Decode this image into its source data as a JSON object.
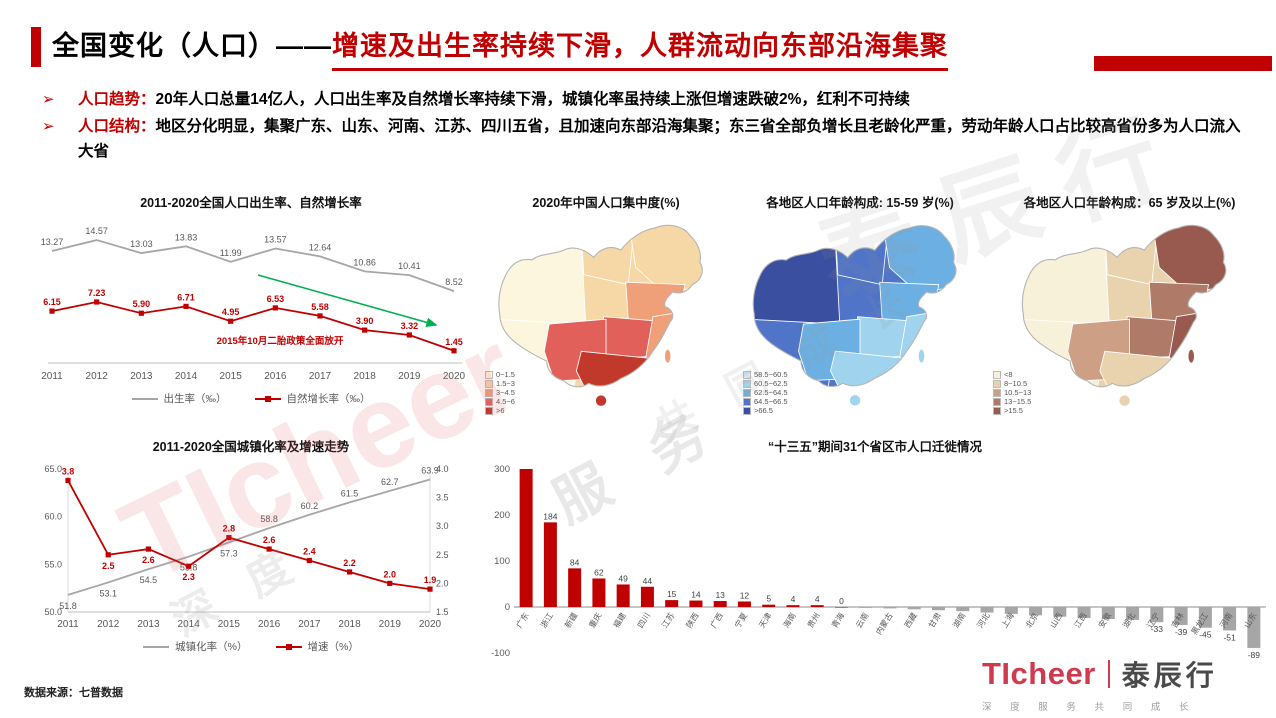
{
  "header": {
    "title_black": "全国变化（人口）——",
    "title_red": "增速及出生率持续下滑，人群流动向东部沿海集聚"
  },
  "bullets": [
    {
      "marker": "➢",
      "label": "人口趋势：",
      "text": "20年人口总量14亿人，人口出生率及自然增长率持续下滑，城镇化率虽持续上涨但增速跌破2%，红利不可持续"
    },
    {
      "marker": "➢",
      "label": "人口结构：",
      "text": "地区分化明显，集聚广东、山东、河南、江苏、四川五省，且加速向东部沿海集聚；东三省全部负增长且老龄化严重，劳动年龄人口占比较高省份多为人口流入大省"
    }
  ],
  "chart_data": [
    {
      "id": "birth-rate-line",
      "type": "line",
      "title": "2011-2020全国人口出生率、自然增长率",
      "years": [
        2011,
        2012,
        2013,
        2014,
        2015,
        2016,
        2017,
        2018,
        2019,
        2020
      ],
      "ylim": [
        0,
        16
      ],
      "series": [
        {
          "name": "出生率（‰）",
          "color": "#a6a6a6",
          "marker": "none",
          "values": [
            13.27,
            14.57,
            13.03,
            13.83,
            11.99,
            13.57,
            12.64,
            10.86,
            10.41,
            8.52
          ]
        },
        {
          "name": "自然增长率（‰）",
          "color": "#c00000",
          "marker": "square",
          "values": [
            6.15,
            7.23,
            5.9,
            6.71,
            4.95,
            6.53,
            5.58,
            3.9,
            3.32,
            1.45
          ]
        }
      ],
      "annotation": "2015年10月二胎政策全面放开",
      "annotation_color": "#c00000",
      "arrow_color": "#00b050"
    },
    {
      "id": "urbanization-combo",
      "type": "line",
      "title": "2011-2020全国城镇化率及增速走势",
      "years": [
        2011,
        2012,
        2013,
        2014,
        2015,
        2016,
        2017,
        2018,
        2019,
        2020
      ],
      "left_axis": {
        "min": 50,
        "max": 65,
        "ticks": [
          "50.0",
          "55.0",
          "60.0",
          "65.0"
        ]
      },
      "right_axis": {
        "min": 1.5,
        "max": 4.0,
        "ticks": [
          "1.5",
          "2.0",
          "2.5",
          "3.0",
          "3.5",
          "4.0"
        ]
      },
      "series": [
        {
          "name": "城镇化率（%）",
          "color": "#a6a6a6",
          "axis": "left",
          "marker": "none",
          "values": [
            51.8,
            53.1,
            54.5,
            55.8,
            57.3,
            58.8,
            60.2,
            61.5,
            62.7,
            63.9
          ]
        },
        {
          "name": "增速（%）",
          "color": "#c00000",
          "axis": "right",
          "marker": "square",
          "values": [
            3.8,
            2.5,
            2.6,
            2.3,
            2.8,
            2.6,
            2.4,
            2.2,
            2.0,
            1.9
          ]
        }
      ]
    },
    {
      "id": "migration-bar",
      "type": "bar",
      "title": "“十三五”期间31个省区市人口迁徙情况",
      "y_ticks": [
        300,
        200,
        100,
        0,
        -100
      ],
      "ylim": [
        -100,
        300
      ],
      "pos_color": "#c00000",
      "neg_color": "#a6a6a6",
      "bars": [
        {
          "province": "广东",
          "value": 300
        },
        {
          "province": "浙江",
          "value": 184
        },
        {
          "province": "新疆",
          "value": 84
        },
        {
          "province": "重庆",
          "value": 62
        },
        {
          "province": "福建",
          "value": 49
        },
        {
          "province": "四川",
          "value": 44
        },
        {
          "province": "江苏",
          "value": 15
        },
        {
          "province": "陕西",
          "value": 14
        },
        {
          "province": "广西",
          "value": 13
        },
        {
          "province": "宁夏",
          "value": 12
        },
        {
          "province": "天津",
          "value": 5
        },
        {
          "province": "海南",
          "value": 4
        },
        {
          "province": "贵州",
          "value": 4
        },
        {
          "province": "青海",
          "value": 0
        },
        {
          "province": "云南",
          "value": -2
        },
        {
          "province": "内蒙古",
          "value": -3
        },
        {
          "province": "西藏",
          "value": -5
        },
        {
          "province": "甘肃",
          "value": -7
        },
        {
          "province": "湖南",
          "value": -9
        },
        {
          "province": "河北",
          "value": -12
        },
        {
          "province": "上海",
          "value": -15
        },
        {
          "province": "北京",
          "value": -18
        },
        {
          "province": "山西",
          "value": -21
        },
        {
          "province": "江西",
          "value": -24
        },
        {
          "province": "安徽",
          "value": -26
        },
        {
          "province": "湖北",
          "value": -28
        },
        {
          "province": "辽宁",
          "value": -33
        },
        {
          "province": "吉林",
          "value": -39
        },
        {
          "province": "黑龙江",
          "value": -45
        },
        {
          "province": "河南",
          "value": -51
        },
        {
          "province": "山东",
          "value": -89
        }
      ]
    },
    {
      "id": "map-concentration",
      "type": "choropleth",
      "title": "2020年中国人口集中度(%)",
      "legend": [
        {
          "label": "0~1.5",
          "color": "#fdf6df"
        },
        {
          "label": "1.5~3",
          "color": "#f6d8a7"
        },
        {
          "label": "3~4.5",
          "color": "#f0a078"
        },
        {
          "label": "4.5~6",
          "color": "#e2605a"
        },
        {
          "label": ">6",
          "color": "#c0392b"
        }
      ],
      "regions": {
        "west": "#fdf6df",
        "tibet": "#fdf6df",
        "north": "#f6d8a7",
        "northeast": "#f6d8a7",
        "northchina": "#f0a078",
        "central": "#e2605a",
        "east": "#f0a078",
        "southwest": "#e2605a",
        "south": "#c0392b"
      }
    },
    {
      "id": "map-age-15-59",
      "type": "choropleth",
      "title": "各地区人口年龄构成: 15-59 岁(%)",
      "legend": [
        {
          "label": "58.5~60.5",
          "color": "#cfe7f5"
        },
        {
          "label": "60.5~62.5",
          "color": "#9fd3ee"
        },
        {
          "label": "62.5~64.5",
          "color": "#6cb0e3"
        },
        {
          "label": "64.5~66.5",
          "color": "#4f74c8"
        },
        {
          "label": ">66.5",
          "color": "#3b4fa0"
        }
      ],
      "regions": {
        "west": "#3b4fa0",
        "tibet": "#4f74c8",
        "north": "#4f74c8",
        "northeast": "#6cb0e3",
        "northchina": "#6cb0e3",
        "central": "#9fd3ee",
        "east": "#9fd3ee",
        "southwest": "#6cb0e3",
        "south": "#9fd3ee"
      }
    },
    {
      "id": "map-age-65plus",
      "type": "choropleth",
      "title": "各地区人口年龄构成：65 岁及以上(%)",
      "legend": [
        {
          "label": "<8",
          "color": "#f8f1da"
        },
        {
          "label": "8~10.5",
          "color": "#e9d3ae"
        },
        {
          "label": "10.5~13",
          "color": "#cda085"
        },
        {
          "label": "13~15.5",
          "color": "#b07a69"
        },
        {
          "label": ">15.5",
          "color": "#985a4e"
        }
      ],
      "regions": {
        "west": "#f8f1da",
        "tibet": "#f8f1da",
        "north": "#e9d3ae",
        "northeast": "#985a4e",
        "northchina": "#b07a69",
        "central": "#b07a69",
        "east": "#985a4e",
        "southwest": "#cda085",
        "south": "#e9d3ae"
      }
    }
  ],
  "footer": {
    "source": "数据来源：七普数据"
  },
  "logo": {
    "ticheer": "TIcheer",
    "cn": "泰辰行",
    "tagline": "深 度 服 务 共 同 成 长"
  },
  "watermarks": [
    "TIcheer",
    "泰辰行",
    "服 务",
    "深 度",
    "共 同 成 长"
  ],
  "colors": {
    "accent_red": "#c00000",
    "gray_series": "#a6a6a6",
    "arrow_green": "#00b050"
  }
}
